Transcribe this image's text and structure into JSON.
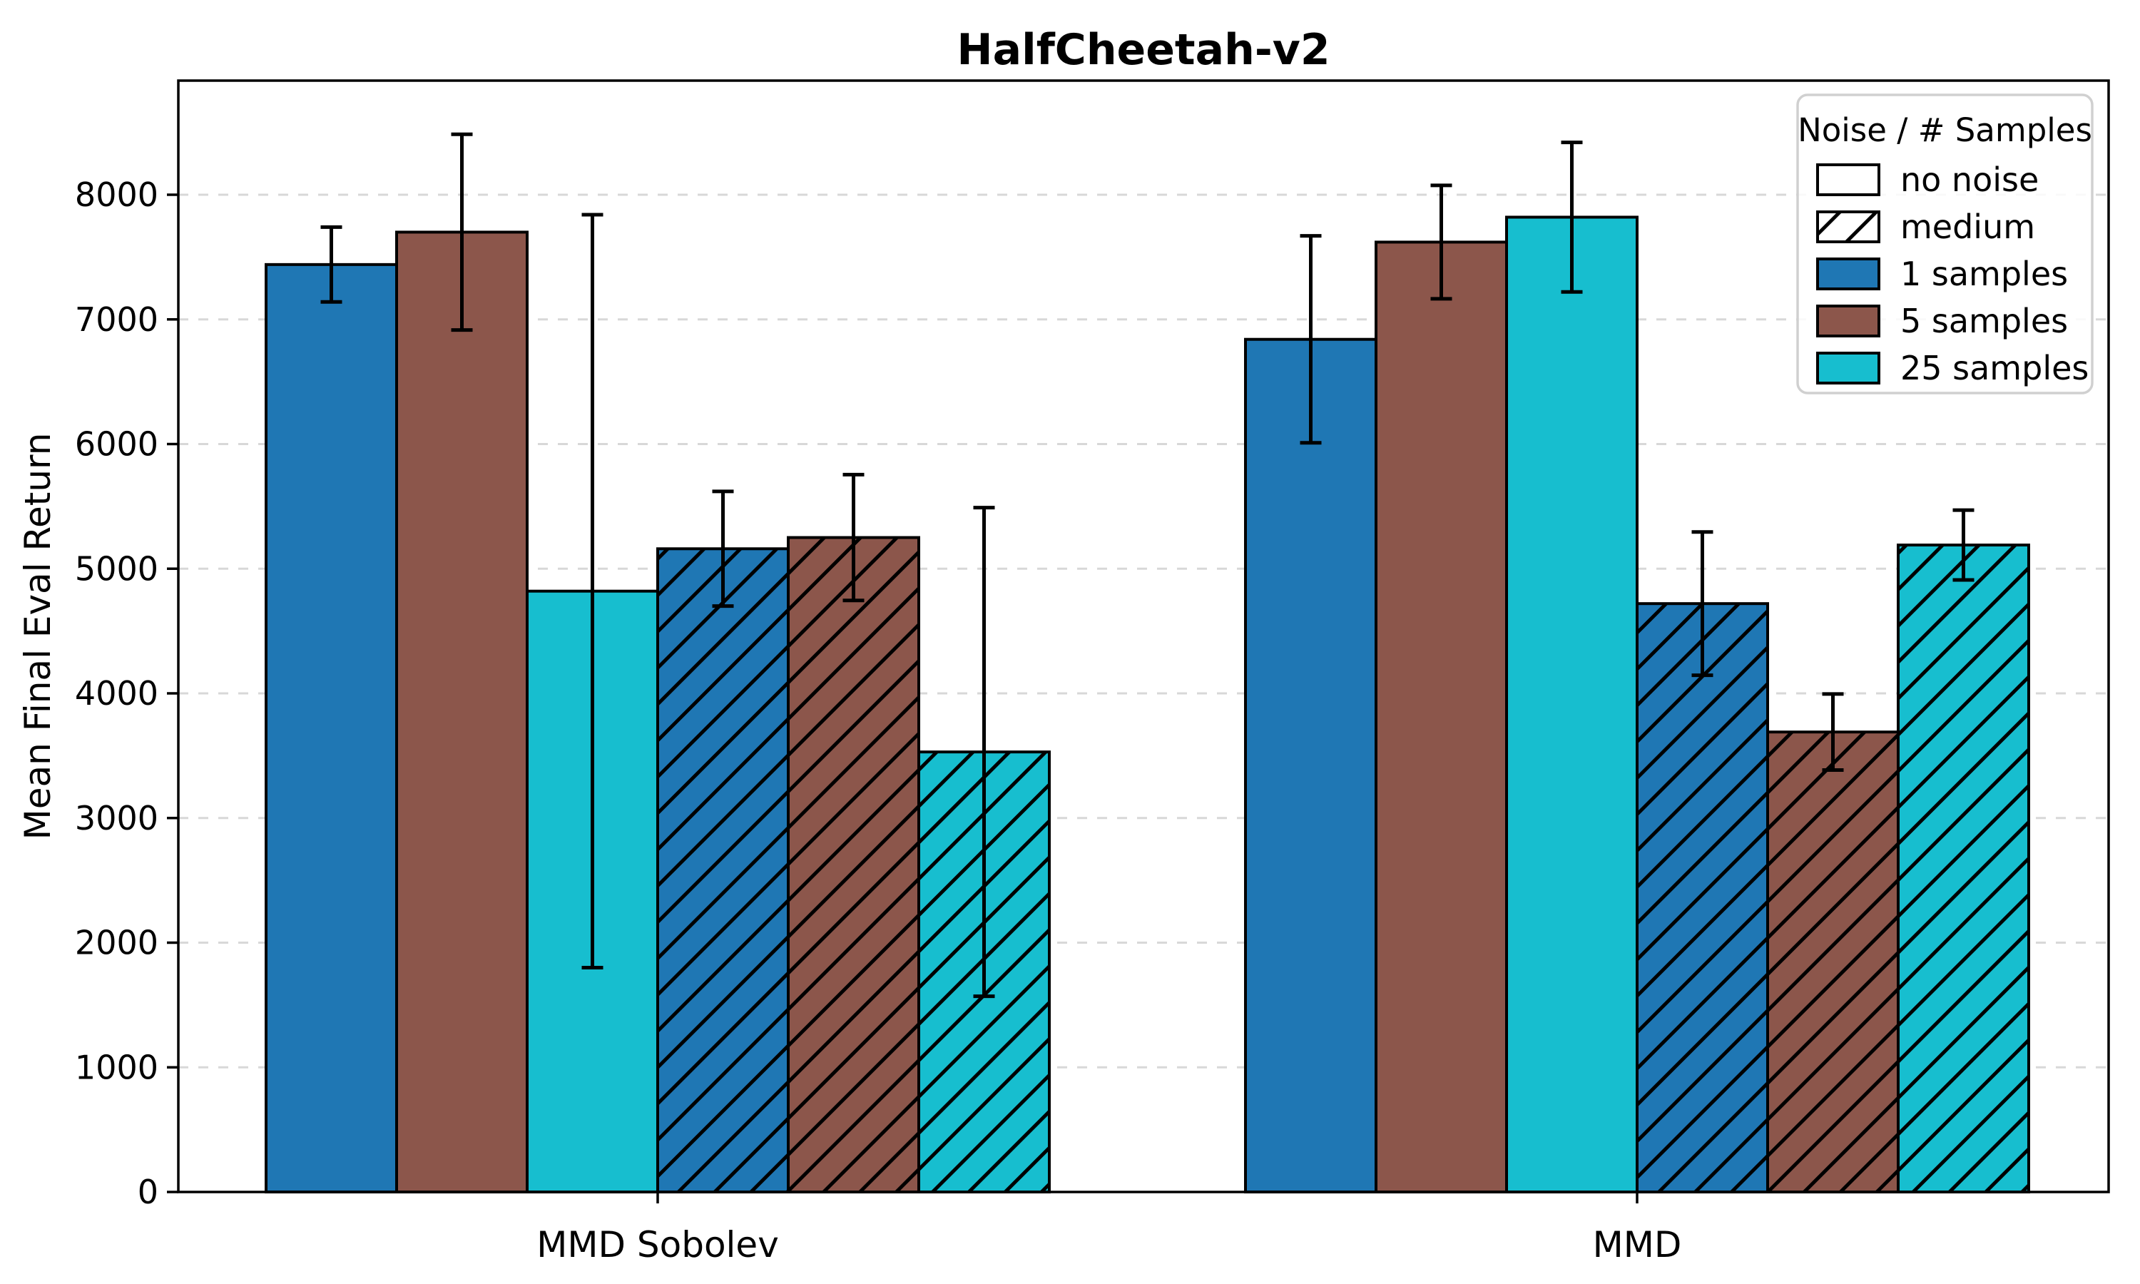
{
  "figure": {
    "title": "HalfCheetah-v2",
    "background": "#ffffff"
  },
  "chart_data": {
    "type": "bar",
    "title": "HalfCheetah-v2",
    "xlabel": "",
    "ylabel": "Mean Final Eval Return",
    "categories": [
      "MMD Sobolev",
      "MMD"
    ],
    "yticks": [
      0,
      1000,
      2000,
      3000,
      4000,
      5000,
      6000,
      7000,
      8000
    ],
    "ylim": [
      0,
      8915
    ],
    "grid": "horizontal-dashed",
    "grid_color": "#d8d8d8",
    "bar_edge_color": "#000000",
    "error_bar_color": "#000000",
    "series": [
      {
        "name": "1 samples",
        "noise": "no noise",
        "color": "#1f77b4",
        "hatch": false,
        "values": [
          7440,
          6840
        ],
        "errors": [
          300,
          830
        ]
      },
      {
        "name": "5 samples",
        "noise": "no noise",
        "color": "#8c564b",
        "hatch": false,
        "values": [
          7700,
          7620
        ],
        "errors": [
          785,
          455
        ]
      },
      {
        "name": "25 samples",
        "noise": "no noise",
        "color": "#17becf",
        "hatch": false,
        "values": [
          4820,
          7820
        ],
        "errors": [
          3020,
          600
        ]
      },
      {
        "name": "1 samples",
        "noise": "medium",
        "color": "#1f77b4",
        "hatch": true,
        "values": [
          5160,
          4720
        ],
        "errors": [
          460,
          575
        ]
      },
      {
        "name": "5 samples",
        "noise": "medium",
        "color": "#8c564b",
        "hatch": true,
        "values": [
          5250,
          3690
        ],
        "errors": [
          505,
          305
        ]
      },
      {
        "name": "25 samples",
        "noise": "medium",
        "color": "#17becf",
        "hatch": true,
        "values": [
          3530,
          5190
        ],
        "errors": [
          1960,
          280
        ]
      }
    ],
    "legend_position": "upper right"
  },
  "legend": {
    "title": "Noise / # Samples",
    "entries": [
      {
        "label": "no noise",
        "fill": "#ffffff",
        "hatch": false
      },
      {
        "label": "medium",
        "fill": "#ffffff",
        "hatch": true
      },
      {
        "label": "1 samples",
        "fill": "#1f77b4",
        "hatch": false
      },
      {
        "label": "5 samples",
        "fill": "#8c564b",
        "hatch": false
      },
      {
        "label": "25 samples",
        "fill": "#17becf",
        "hatch": false
      }
    ]
  }
}
